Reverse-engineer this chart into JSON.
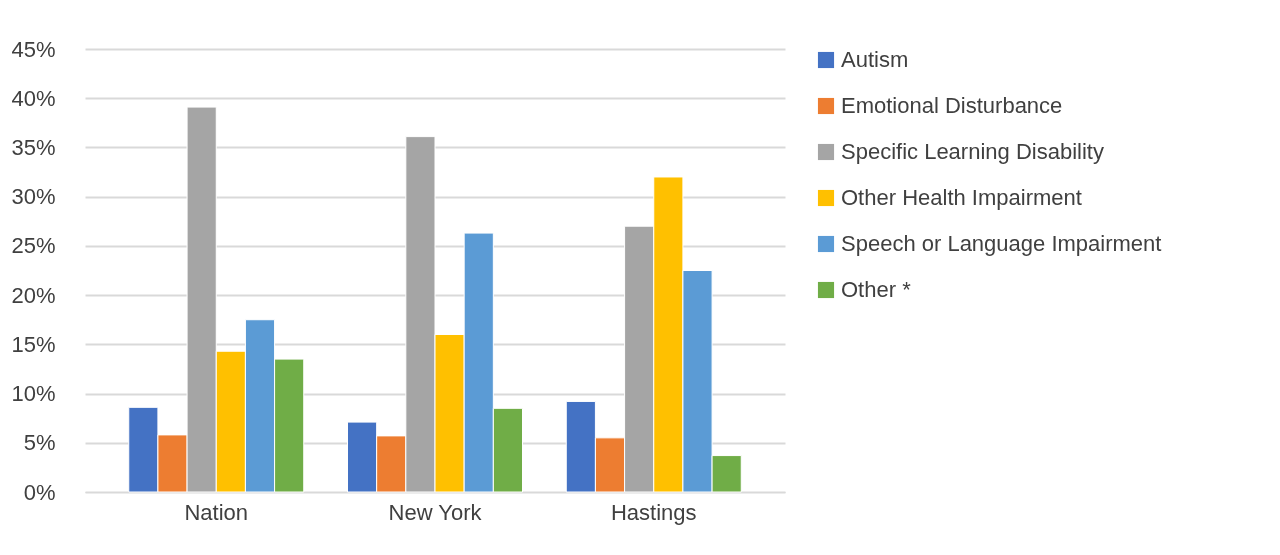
{
  "chart_data": {
    "type": "bar",
    "categories": [
      "Nation",
      "New York",
      "Hastings"
    ],
    "series": [
      {
        "name": "Autism",
        "color": "#4472c4",
        "values": [
          8.6,
          7.1,
          9.2
        ]
      },
      {
        "name": "Emotional Disturbance",
        "color": "#ed7d31",
        "values": [
          5.8,
          5.7,
          5.5
        ]
      },
      {
        "name": "Specific Learning Disability",
        "color": "#a5a5a5",
        "values": [
          39.1,
          36.1,
          27.0
        ]
      },
      {
        "name": "Other Health Impairment",
        "color": "#ffc000",
        "values": [
          14.3,
          16.0,
          32.0
        ]
      },
      {
        "name": "Speech or Language Impairment",
        "color": "#5b9bd5",
        "values": [
          17.5,
          26.3,
          22.5
        ]
      },
      {
        "name": "Other *",
        "color": "#70ad47",
        "values": [
          13.5,
          8.5,
          3.7
        ]
      }
    ],
    "ylim": [
      0,
      45
    ],
    "yticks": [
      {
        "value": 0,
        "label": "0%"
      },
      {
        "value": 5,
        "label": "5%"
      },
      {
        "value": 10,
        "label": "10%"
      },
      {
        "value": 15,
        "label": "15%"
      },
      {
        "value": 20,
        "label": "20%"
      },
      {
        "value": 25,
        "label": "25%"
      },
      {
        "value": 30,
        "label": "30%"
      },
      {
        "value": 35,
        "label": "35%"
      },
      {
        "value": 40,
        "label": "40%"
      },
      {
        "value": 45,
        "label": "45%"
      }
    ],
    "grid": "y",
    "legend": "right"
  }
}
